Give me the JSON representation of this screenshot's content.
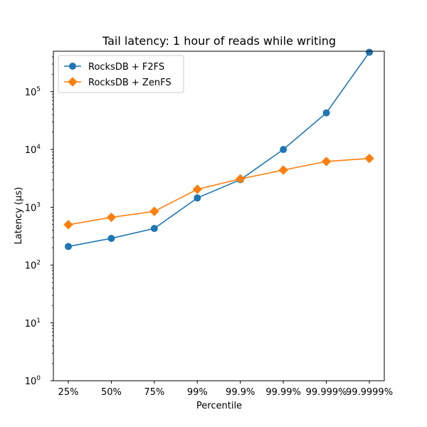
{
  "chart_data": {
    "type": "line",
    "title": "Tail latency: 1 hour of reads while writing",
    "xlabel": "Percentile",
    "ylabel": "Latency (µs)",
    "categories": [
      "25%",
      "50%",
      "75%",
      "99%",
      "99.9%",
      "99.99%",
      "99.999%",
      "99.9999%"
    ],
    "yscale": "log",
    "ylim": [
      1,
      500000
    ],
    "yticks": [
      {
        "value": 1,
        "base": "10",
        "exp": "0"
      },
      {
        "value": 10,
        "base": "10",
        "exp": "1"
      },
      {
        "value": 100,
        "base": "10",
        "exp": "2"
      },
      {
        "value": 1000,
        "base": "10",
        "exp": "3"
      },
      {
        "value": 10000,
        "base": "10",
        "exp": "4"
      },
      {
        "value": 100000,
        "base": "10",
        "exp": "5"
      }
    ],
    "grid": false,
    "legend_position": "top-left",
    "series": [
      {
        "name": "RocksDB + F2FS",
        "color": "#1f77b4",
        "marker": "circle",
        "values": [
          210,
          290,
          430,
          1450,
          3000,
          10000,
          43000,
          480000
        ]
      },
      {
        "name": "RocksDB + ZenFS",
        "color": "#ff7f0e",
        "marker": "diamond",
        "values": [
          500,
          670,
          850,
          2050,
          3100,
          4400,
          6200,
          7000
        ]
      }
    ]
  }
}
